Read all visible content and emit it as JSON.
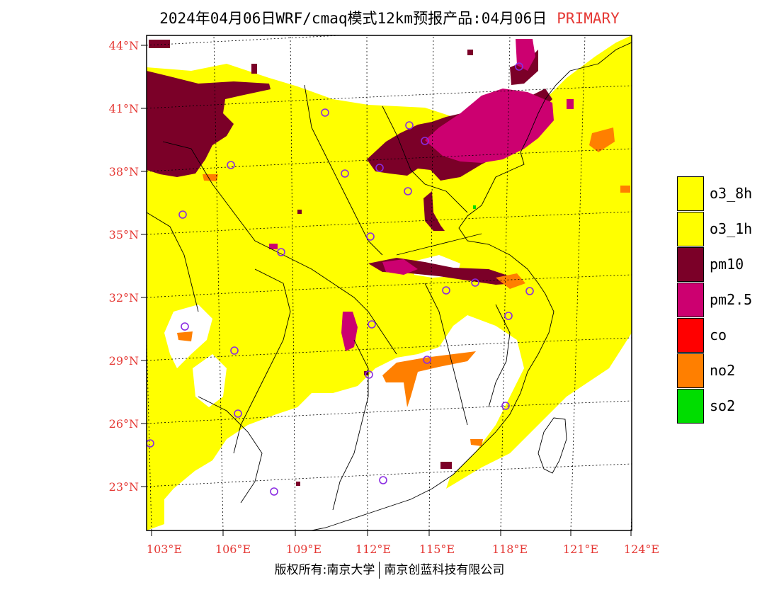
{
  "title": {
    "text": "2024年04月06日WRF/cmaq模式12km预报产品:04月06日",
    "tag": "PRIMARY"
  },
  "axes": {
    "lat_labels": [
      "44°N",
      "41°N",
      "38°N",
      "35°N",
      "32°N",
      "29°N",
      "26°N",
      "23°N"
    ],
    "lon_labels": [
      "103°E",
      "106°E",
      "109°E",
      "112°E",
      "115°E",
      "118°E",
      "121°E",
      "124°E"
    ]
  },
  "legend": [
    {
      "label": "o3_8h",
      "color": "#ffff00"
    },
    {
      "label": "o3_1h",
      "color": "#ffff00"
    },
    {
      "label": "pm10",
      "color": "#7b0028"
    },
    {
      "label": "pm2.5",
      "color": "#cc0070"
    },
    {
      "label": "co",
      "color": "#ff0000"
    },
    {
      "label": "no2",
      "color": "#ff7f00"
    },
    {
      "label": "so2",
      "color": "#00dd00"
    }
  ],
  "footer": {
    "left": "版权所有:南京大学",
    "right": "南京创蓝科技有限公司"
  }
}
